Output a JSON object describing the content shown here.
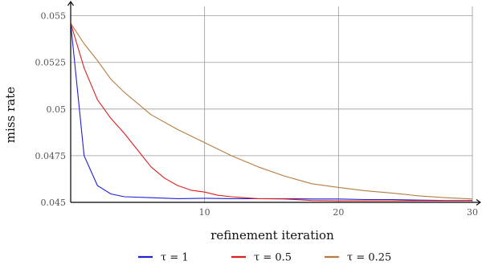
{
  "chart_data": {
    "type": "line",
    "title": "",
    "xlabel": "refinement iteration",
    "ylabel": "miss rate",
    "xlim": [
      0,
      30
    ],
    "ylim": [
      0.045,
      0.0555
    ],
    "x_ticks": [
      10,
      20,
      30
    ],
    "x_tick_labels": [
      "10",
      "20",
      "30"
    ],
    "y_ticks": [
      0.045,
      0.0475,
      0.05,
      0.0525,
      0.055
    ],
    "y_tick_labels": [
      "0.045",
      "0.0475",
      "0.05",
      "0.0525",
      "0.055"
    ],
    "grid": true,
    "legend_position": "bottom",
    "series": [
      {
        "name": "τ = 1",
        "color": "#1f1fdc",
        "x": [
          0,
          1,
          2,
          3,
          4,
          6,
          8,
          10,
          12,
          14,
          16,
          18,
          20,
          22,
          24,
          26,
          28,
          30
        ],
        "values": [
          0.0546,
          0.0475,
          0.0459,
          0.04545,
          0.0453,
          0.04525,
          0.0452,
          0.04522,
          0.0452,
          0.0452,
          0.0452,
          0.04518,
          0.04518,
          0.04515,
          0.04515,
          0.04512,
          0.0451,
          0.0451
        ]
      },
      {
        "name": "τ = 0.5",
        "color": "#dc1f1f",
        "x": [
          0,
          1,
          2,
          3,
          4,
          5,
          6,
          7,
          8,
          9,
          10,
          11,
          12,
          14,
          16,
          18,
          20,
          22,
          24,
          26,
          28,
          30
        ],
        "values": [
          0.0546,
          0.0522,
          0.0505,
          0.0495,
          0.0487,
          0.0478,
          0.0469,
          0.0463,
          0.0459,
          0.04565,
          0.04555,
          0.04538,
          0.0453,
          0.0452,
          0.04518,
          0.0451,
          0.04508,
          0.04508,
          0.04508,
          0.04508,
          0.04508,
          0.04508
        ]
      },
      {
        "name": "τ = 0.25",
        "color": "#b87c40",
        "x": [
          0,
          1,
          2,
          3,
          4,
          5,
          6,
          8,
          10,
          12,
          14,
          16,
          18,
          20,
          22,
          24,
          26,
          28,
          30
        ],
        "values": [
          0.0546,
          0.0535,
          0.0526,
          0.0516,
          0.0509,
          0.0503,
          0.0497,
          0.0489,
          0.0482,
          0.0475,
          0.0469,
          0.0464,
          0.046,
          0.0458,
          0.04562,
          0.0455,
          0.04535,
          0.04525,
          0.04518
        ]
      }
    ]
  }
}
